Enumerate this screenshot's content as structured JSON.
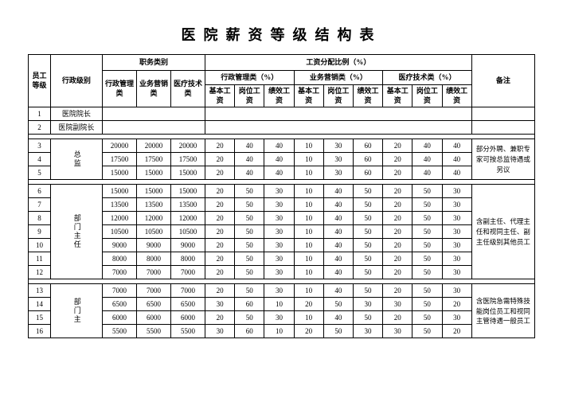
{
  "title": "医院薪资等级结构表",
  "headers": {
    "col_level": "员工等级",
    "col_admin": "行政级别",
    "group_job": "职务类别",
    "group_salary": "工资分配比例（%）",
    "col_remark": "备注",
    "job_admin": "行政管理类",
    "job_biz": "业务营销类",
    "job_med": "医疗技术类",
    "cat_admin": "行政管理类（%）",
    "cat_biz": "业务营销类（%）",
    "cat_med": "医疗技术类（%）",
    "sub_base": "基本工资",
    "sub_post": "岗位工资",
    "sub_perf": "绩效工资"
  },
  "admin_labels": {
    "r1": "医院院长",
    "r2": "医院副院长",
    "g1": "总监",
    "g2": "部门主任",
    "g3": "部门主"
  },
  "rows": {
    "r3": {
      "n": "3",
      "a": "20000",
      "b": "20000",
      "c": "20000",
      "v": [
        "20",
        "40",
        "40",
        "10",
        "30",
        "60",
        "20",
        "40",
        "40"
      ]
    },
    "r4": {
      "n": "4",
      "a": "17500",
      "b": "17500",
      "c": "17500",
      "v": [
        "20",
        "40",
        "40",
        "10",
        "30",
        "60",
        "20",
        "40",
        "40"
      ]
    },
    "r5": {
      "n": "5",
      "a": "15000",
      "b": "15000",
      "c": "15000",
      "v": [
        "20",
        "40",
        "40",
        "10",
        "30",
        "60",
        "20",
        "40",
        "40"
      ]
    },
    "r6": {
      "n": "6",
      "a": "15000",
      "b": "15000",
      "c": "15000",
      "v": [
        "20",
        "50",
        "30",
        "10",
        "40",
        "50",
        "20",
        "50",
        "30"
      ]
    },
    "r7": {
      "n": "7",
      "a": "13500",
      "b": "13500",
      "c": "13500",
      "v": [
        "20",
        "50",
        "30",
        "10",
        "40",
        "50",
        "20",
        "50",
        "30"
      ]
    },
    "r8": {
      "n": "8",
      "a": "12000",
      "b": "12000",
      "c": "12000",
      "v": [
        "20",
        "50",
        "30",
        "10",
        "40",
        "50",
        "20",
        "50",
        "30"
      ]
    },
    "r9": {
      "n": "9",
      "a": "10500",
      "b": "10500",
      "c": "10500",
      "v": [
        "20",
        "50",
        "30",
        "10",
        "40",
        "50",
        "20",
        "50",
        "30"
      ]
    },
    "r10": {
      "n": "10",
      "a": "9000",
      "b": "9000",
      "c": "9000",
      "v": [
        "20",
        "50",
        "30",
        "10",
        "40",
        "50",
        "20",
        "50",
        "30"
      ]
    },
    "r11": {
      "n": "11",
      "a": "8000",
      "b": "8000",
      "c": "8000",
      "v": [
        "20",
        "50",
        "30",
        "10",
        "40",
        "50",
        "20",
        "50",
        "30"
      ]
    },
    "r12": {
      "n": "12",
      "a": "7000",
      "b": "7000",
      "c": "7000",
      "v": [
        "20",
        "50",
        "30",
        "10",
        "40",
        "50",
        "20",
        "50",
        "30"
      ]
    },
    "r13": {
      "n": "13",
      "a": "7000",
      "b": "7000",
      "c": "7000",
      "v": [
        "20",
        "50",
        "30",
        "10",
        "40",
        "50",
        "20",
        "50",
        "30"
      ]
    },
    "r14": {
      "n": "14",
      "a": "6500",
      "b": "6500",
      "c": "6500",
      "v": [
        "30",
        "60",
        "10",
        "20",
        "50",
        "30",
        "30",
        "50",
        "20"
      ]
    },
    "r15": {
      "n": "15",
      "a": "6000",
      "b": "6000",
      "c": "6000",
      "v": [
        "20",
        "50",
        "30",
        "10",
        "40",
        "50",
        "20",
        "50",
        "30"
      ]
    },
    "r16": {
      "n": "16",
      "a": "5500",
      "b": "5500",
      "c": "5500",
      "v": [
        "30",
        "60",
        "10",
        "20",
        "50",
        "30",
        "30",
        "50",
        "20"
      ]
    }
  },
  "remarks": {
    "g1": "部分外聘、兼职专家可按总监待遇或另议",
    "g2": "含副主任、代理主任和视同主任、副主任级别其他员工",
    "g3": "含医院急需特殊技能岗位员工和视同主管待遇一般员工"
  }
}
